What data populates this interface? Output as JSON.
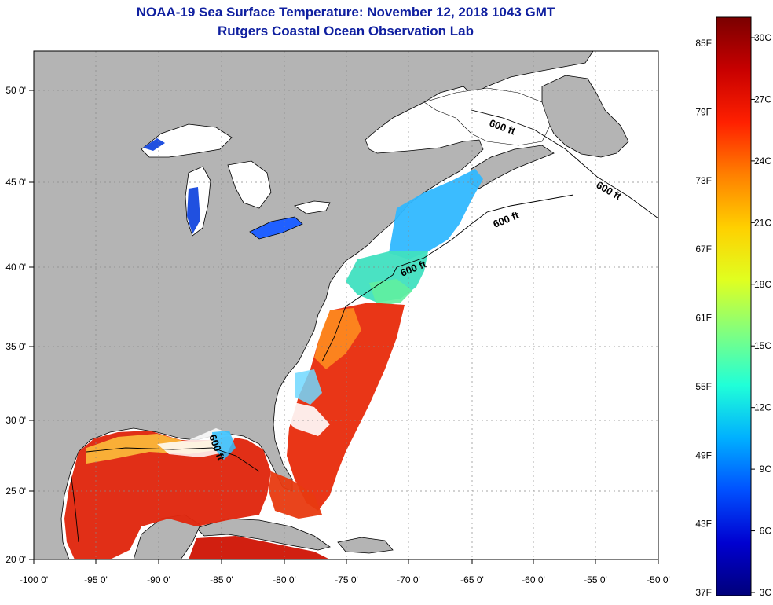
{
  "title": "NOAA-19 Sea Surface Temperature:  November 12, 2018 1043 GMT",
  "subtitle": "Rutgers Coastal Ocean Observation Lab",
  "map": {
    "lon_labels": [
      "-100 0'",
      "-95 0'",
      "-90 0'",
      "-85 0'",
      "-80 0'",
      "-75 0'",
      "-70 0'",
      "-65 0'",
      "-60 0'",
      "-55 0'",
      "-50 0'"
    ],
    "lat_labels": [
      "50 0'",
      "45 0'",
      "40 0'",
      "35 0'",
      "30 0'",
      "25 0'",
      "20 0'"
    ],
    "isobath_label": "600 ft",
    "colors": {
      "land": "#b4b4b4",
      "no_data": "#ffffff",
      "grid": "#888888"
    }
  },
  "colorbar": {
    "f_labels": [
      "85F",
      "79F",
      "73F",
      "67F",
      "61F",
      "55F",
      "49F",
      "43F",
      "37F"
    ],
    "c_labels": [
      "30C",
      "27C",
      "24C",
      "21C",
      "18C",
      "15C",
      "12C",
      "9C",
      "6C",
      "3C"
    ],
    "stops": [
      "#7a0000",
      "#c80000",
      "#ff2000",
      "#ff8000",
      "#ffd000",
      "#e0ff20",
      "#80ff80",
      "#20ffd8",
      "#00b0ff",
      "#0050ff",
      "#0000d0",
      "#00007a"
    ]
  }
}
